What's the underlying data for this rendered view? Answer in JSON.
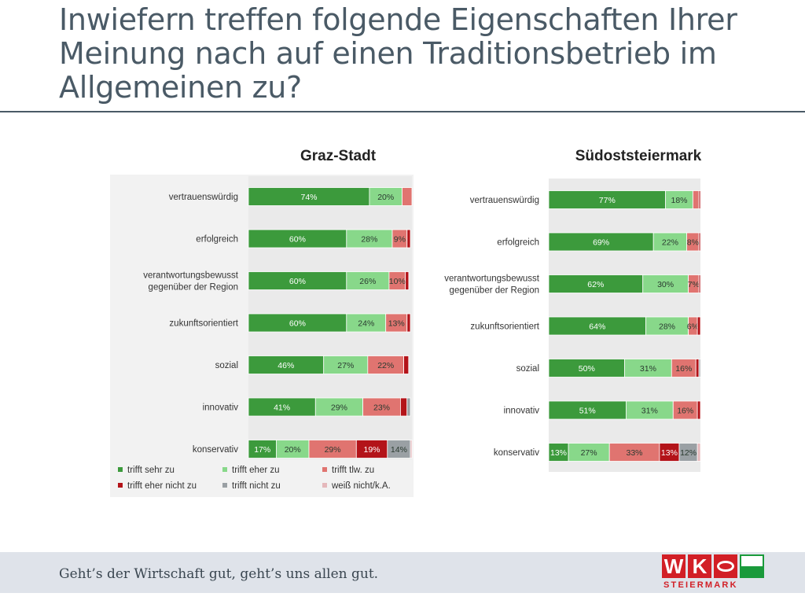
{
  "title": "Inwiefern treffen folgende Eigenschaften Ihrer Meinung nach auf einen Traditionsbetrieb im Allgemeinen zu?",
  "footer": {
    "slogan": "Geht’s der Wirtschaft gut, geht’s uns allen gut.",
    "logo_sub": "STEIERMARK"
  },
  "logo": {
    "letters": [
      "W",
      "K",
      "O"
    ]
  },
  "colors": {
    "trifft_sehr_zu": "#3c9a3c",
    "trifft_eher_zu": "#88d88a",
    "trifft_tlw_zu": "#e07470",
    "trifft_eher_nicht_zu": "#b31319",
    "trifft_nicht_zu": "#9aa0a4",
    "weiss_nicht": "#e5b8bb",
    "label_dark": "#ffffff",
    "label_light": "#2a3a30"
  },
  "chart_data": [
    {
      "type": "bar",
      "orientation": "horizontal-stacked",
      "title": "Graz-Stadt",
      "categories": [
        [
          "vertrauenswürdig"
        ],
        [
          "erfolgreich"
        ],
        [
          "verantwortungsbewusst",
          "gegenüber der Region"
        ],
        [
          "zukunftsorientiert"
        ],
        [
          "sozial"
        ],
        [
          "innovativ"
        ],
        [
          "konservativ"
        ]
      ],
      "series": [
        {
          "name": "trifft sehr zu",
          "values": [
            74,
            60,
            60,
            60,
            46,
            41,
            17
          ],
          "labels": [
            "74%",
            "60%",
            "60%",
            "60%",
            "46%",
            "41%",
            "17%"
          ]
        },
        {
          "name": "trifft eher zu",
          "values": [
            20,
            28,
            26,
            24,
            27,
            29,
            20
          ],
          "labels": [
            "20%",
            "28%",
            "26%",
            "24%",
            "27%",
            "29%",
            "20%"
          ]
        },
        {
          "name": "trifft tlw. zu",
          "values": [
            6,
            9,
            10,
            13,
            22,
            23,
            29
          ],
          "labels": [
            "",
            "9%",
            "10%",
            "13%",
            "22%",
            "23%",
            "29%"
          ]
        },
        {
          "name": "trifft eher nicht zu",
          "values": [
            0,
            2,
            2,
            2,
            3,
            4,
            19
          ],
          "labels": [
            "",
            "",
            "",
            "",
            "",
            "",
            "19%"
          ]
        },
        {
          "name": "trifft nicht zu",
          "values": [
            0,
            0,
            0,
            0,
            0,
            2,
            14
          ],
          "labels": [
            "",
            "",
            "",
            "",
            "",
            "",
            "14%"
          ]
        },
        {
          "name": "weiß nicht/k.A.",
          "values": [
            0,
            0,
            0,
            0,
            0,
            0,
            1
          ],
          "labels": [
            "",
            "",
            "",
            "",
            "",
            "",
            ""
          ]
        }
      ],
      "legend": "bottom"
    },
    {
      "type": "bar",
      "orientation": "horizontal-stacked",
      "title": "Südoststeiermark",
      "categories": [
        [
          "vertrauenswürdig"
        ],
        [
          "erfolgreich"
        ],
        [
          "verantwortungsbewusst",
          "gegenüber der Region"
        ],
        [
          "zukunftsorientiert"
        ],
        [
          "sozial"
        ],
        [
          "innovativ"
        ],
        [
          "konservativ"
        ]
      ],
      "series": [
        {
          "name": "trifft sehr zu",
          "values": [
            77,
            69,
            62,
            64,
            50,
            51,
            13
          ],
          "labels": [
            "77%",
            "69%",
            "62%",
            "64%",
            "50%",
            "51%",
            "13%"
          ]
        },
        {
          "name": "trifft eher zu",
          "values": [
            18,
            22,
            30,
            28,
            31,
            31,
            27
          ],
          "labels": [
            "18%",
            "22%",
            "30%",
            "28%",
            "31%",
            "31%",
            "27%"
          ]
        },
        {
          "name": "trifft tlw. zu",
          "values": [
            4,
            8,
            7,
            6,
            16,
            16,
            33
          ],
          "labels": [
            "",
            "8%",
            "7%",
            "6%",
            "16%",
            "16%",
            "33%"
          ]
        },
        {
          "name": "trifft eher nicht zu",
          "values": [
            1,
            1,
            1,
            2,
            2,
            2,
            13
          ],
          "labels": [
            "",
            "",
            "",
            "",
            "",
            "",
            "13%"
          ]
        },
        {
          "name": "trifft nicht zu",
          "values": [
            0,
            0,
            0,
            0,
            1,
            0,
            12
          ],
          "labels": [
            "",
            "",
            "",
            "",
            "",
            "",
            "12%"
          ]
        },
        {
          "name": "weiß nicht/k.A.",
          "values": [
            0,
            0,
            0,
            0,
            0,
            0,
            2
          ],
          "labels": [
            "",
            "",
            "",
            "",
            "",
            "",
            ""
          ]
        }
      ]
    }
  ],
  "legend_items": [
    {
      "label": "trifft sehr zu",
      "color": "#3c9a3c"
    },
    {
      "label": "trifft eher zu",
      "color": "#88d88a"
    },
    {
      "label": "trifft tlw. zu",
      "color": "#e07470"
    },
    {
      "label": "trifft eher nicht zu",
      "color": "#b31319"
    },
    {
      "label": "trifft nicht zu",
      "color": "#9aa0a4"
    },
    {
      "label": "weiß nicht/k.A.",
      "color": "#e5b8bb"
    }
  ]
}
